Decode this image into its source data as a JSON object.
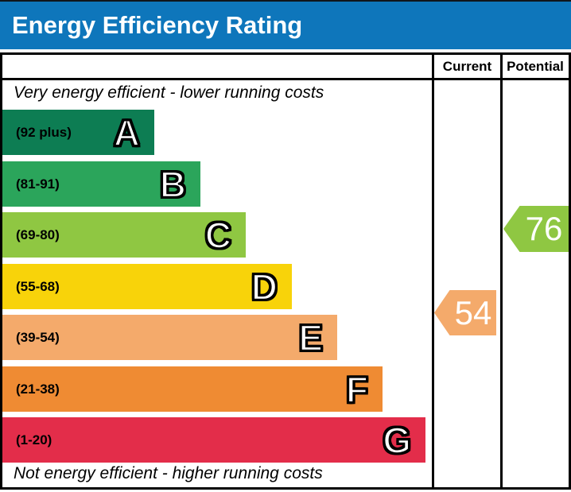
{
  "title": "Energy Efficiency Rating",
  "table": {
    "columns": {
      "current": "Current",
      "potential": "Potential"
    }
  },
  "captions": {
    "top": "Very energy efficient - lower running costs",
    "bottom": "Not energy efficient - higher running costs"
  },
  "bands": [
    {
      "letter": "A",
      "range": "(92 plus)",
      "color": "#0d7d53"
    },
    {
      "letter": "B",
      "range": "(81-91)",
      "color": "#2ba55b"
    },
    {
      "letter": "C",
      "range": "(69-80)",
      "color": "#8fc742"
    },
    {
      "letter": "D",
      "range": "(55-68)",
      "color": "#f8d30a"
    },
    {
      "letter": "E",
      "range": "(39-54)",
      "color": "#f4aa6b"
    },
    {
      "letter": "F",
      "range": "(21-38)",
      "color": "#ef8b33"
    },
    {
      "letter": "G",
      "range": "(1-20)",
      "color": "#e32d4a"
    }
  ],
  "ratings": {
    "current": {
      "label": "Current",
      "value": "54",
      "color": "#f4aa6b",
      "band": "E"
    },
    "potential": {
      "label": "Potential",
      "value": "76",
      "color": "#8fc742",
      "band": "C"
    }
  },
  "colors": {
    "header_blue": "#0e76bb",
    "border_black": "#000000",
    "letter_fill": "#ffffff"
  },
  "chart_data": {
    "type": "bar",
    "orientation": "horizontal",
    "title": "Energy Efficiency Rating",
    "categories": [
      "A",
      "B",
      "C",
      "D",
      "E",
      "F",
      "G"
    ],
    "band_ranges": [
      "92 plus",
      "81-91",
      "69-80",
      "55-68",
      "39-54",
      "21-38",
      "1-20"
    ],
    "band_colors": [
      "#0d7d53",
      "#2ba55b",
      "#8fc742",
      "#f8d30a",
      "#f4aa6b",
      "#ef8b33",
      "#e32d4a"
    ],
    "scale_min": 1,
    "scale_max": 100,
    "markers": [
      {
        "series": "Current",
        "value": 54,
        "band": "E",
        "color": "#f4aa6b"
      },
      {
        "series": "Potential",
        "value": 76,
        "band": "C",
        "color": "#8fc742"
      }
    ],
    "annotations": [
      "Very energy efficient - lower running costs",
      "Not energy efficient - higher running costs"
    ],
    "legend_position": "none",
    "grid": false
  }
}
